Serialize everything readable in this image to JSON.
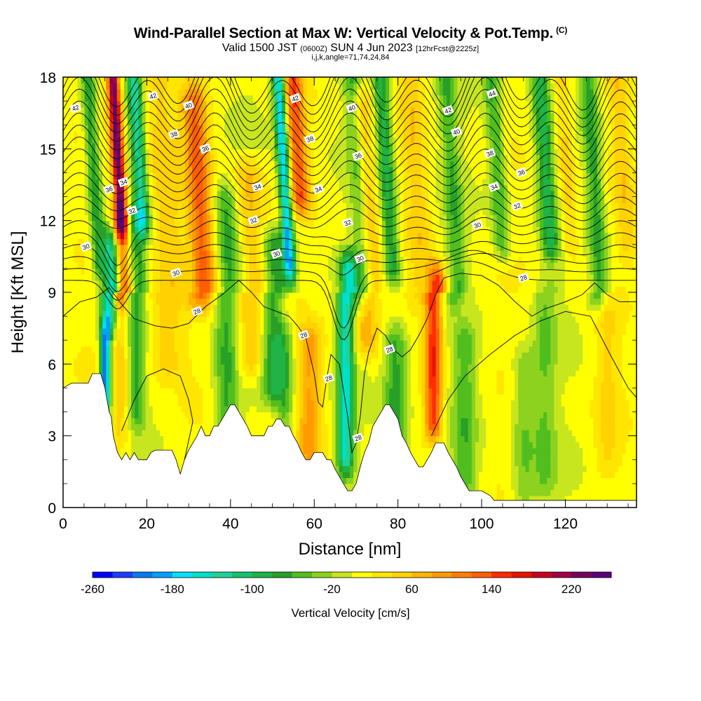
{
  "header": {
    "title": "Wind-Parallel Section at Max W: Vertical Velocity & Pot.Temp.",
    "copyright_mark": "(C)",
    "valid_prefix": "Valid 1500 JST",
    "valid_utc": "(0600Z)",
    "valid_date": "SUN 4 Jun 2023",
    "forecast_info": "[12hrFcst@2225z]",
    "grid_info": "i,j,k,angle=71,74,24,84"
  },
  "chart_data": {
    "type": "heatmap",
    "xlabel": "Distance [nm]",
    "ylabel": "Height [Kft MSL]",
    "xlim": [
      0,
      137
    ],
    "ylim": [
      0,
      18
    ],
    "xticks": [
      0,
      20,
      40,
      60,
      80,
      100,
      120
    ],
    "yticks": [
      0,
      3,
      6,
      9,
      12,
      15,
      18
    ],
    "colorbar": {
      "label": "Vertical Velocity [cm/s]",
      "tick_labels": [
        "-260",
        "-180",
        "-100",
        "-20",
        "60",
        "140",
        "220"
      ],
      "tick_values": [
        -260,
        -180,
        -100,
        -20,
        60,
        140,
        220
      ],
      "range": [
        -260,
        260
      ],
      "bins": 26,
      "colors": [
        "#0000ff",
        "#1e3cff",
        "#0a78f0",
        "#00a0ff",
        "#00e0ff",
        "#00e0c8",
        "#1ed296",
        "#14c36e",
        "#1eb446",
        "#28a028",
        "#50be1e",
        "#8cd21e",
        "#c8e61e",
        "#ffff00",
        "#ffe600",
        "#ffd200",
        "#ffb400",
        "#ff9b00",
        "#ff7d00",
        "#ff5f00",
        "#ff2d00",
        "#e61400",
        "#c8001e",
        "#a00046",
        "#78005a",
        "#5a0078"
      ]
    },
    "contour_field": "Potential Temperature [C]",
    "contour_labels": [
      {
        "v": "42",
        "x": 3,
        "y": 16.7
      },
      {
        "v": "42",
        "x": 21.5,
        "y": 17.2
      },
      {
        "v": "40",
        "x": 30,
        "y": 16.8
      },
      {
        "v": "42",
        "x": 55.5,
        "y": 17.1
      },
      {
        "v": "40",
        "x": 69,
        "y": 16.7
      },
      {
        "v": "42",
        "x": 92,
        "y": 16.6
      },
      {
        "v": "44",
        "x": 102.5,
        "y": 17.3
      },
      {
        "v": "38",
        "x": 26.5,
        "y": 15.6
      },
      {
        "v": "36",
        "x": 34,
        "y": 15.0
      },
      {
        "v": "38",
        "x": 59,
        "y": 15.4
      },
      {
        "v": "40",
        "x": 94,
        "y": 15.7
      },
      {
        "v": "36",
        "x": 70.5,
        "y": 14.7
      },
      {
        "v": "38",
        "x": 102,
        "y": 14.8
      },
      {
        "v": "36",
        "x": 109.5,
        "y": 14.0
      },
      {
        "v": "36",
        "x": 11,
        "y": 13.3
      },
      {
        "v": "34",
        "x": 14.5,
        "y": 13.6
      },
      {
        "v": "34",
        "x": 46.5,
        "y": 13.4
      },
      {
        "v": "34",
        "x": 61,
        "y": 13.3
      },
      {
        "v": "34",
        "x": 103,
        "y": 13.4
      },
      {
        "v": "32",
        "x": 16.5,
        "y": 12.4
      },
      {
        "v": "32",
        "x": 45.5,
        "y": 12.0
      },
      {
        "v": "32",
        "x": 68,
        "y": 11.9
      },
      {
        "v": "32",
        "x": 108.5,
        "y": 12.6
      },
      {
        "v": "30",
        "x": 99,
        "y": 11.8
      },
      {
        "v": "30",
        "x": 5.5,
        "y": 10.9
      },
      {
        "v": "30",
        "x": 51,
        "y": 10.6
      },
      {
        "v": "30",
        "x": 71,
        "y": 10.4
      },
      {
        "v": "30",
        "x": 27,
        "y": 9.8
      },
      {
        "v": "28",
        "x": 110,
        "y": 9.6
      },
      {
        "v": "28",
        "x": 32,
        "y": 8.2
      },
      {
        "v": "28",
        "x": 57.5,
        "y": 7.2
      },
      {
        "v": "28",
        "x": 78,
        "y": 6.6
      },
      {
        "v": "28",
        "x": 63.5,
        "y": 5.4
      },
      {
        "v": "28",
        "x": 70.5,
        "y": 2.9
      }
    ]
  }
}
